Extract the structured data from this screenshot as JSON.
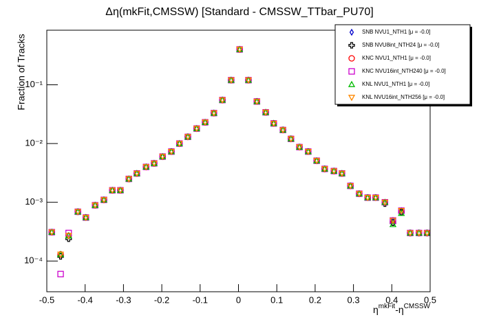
{
  "chart_data": {
    "type": "scatter",
    "title": "Δη(mkFit,CMSSW) [Standard - CMSSW_TTbar_PU70]",
    "x_label": [
      "η",
      "mkFit",
      "-η",
      "CMSSW"
    ],
    "y_label": "Fraction of Tracks",
    "log_y": true,
    "legend_position": "top-right",
    "xlim": [
      -0.5,
      0.5
    ],
    "ylim": [
      3e-05,
      0.85
    ],
    "xticks": [
      -0.5,
      -0.4,
      -0.3,
      -0.2,
      -0.1,
      0,
      0.1,
      0.2,
      0.3,
      0.4,
      0.5
    ],
    "yticks": [
      {
        "value": 0.0001,
        "label": "10⁻⁴"
      },
      {
        "value": 0.001,
        "label": "10⁻³"
      },
      {
        "value": 0.01,
        "label": "10⁻²"
      },
      {
        "value": 0.1,
        "label": "10⁻¹"
      }
    ],
    "x": [
      -0.487,
      -0.464,
      -0.443,
      -0.419,
      -0.398,
      -0.374,
      -0.351,
      -0.329,
      -0.308,
      -0.286,
      -0.265,
      -0.241,
      -0.22,
      -0.198,
      -0.175,
      -0.154,
      -0.132,
      -0.109,
      -0.087,
      -0.064,
      -0.042,
      -0.019,
      0.003,
      0.026,
      0.048,
      0.071,
      0.092,
      0.116,
      0.137,
      0.159,
      0.182,
      0.204,
      0.225,
      0.249,
      0.27,
      0.292,
      0.315,
      0.337,
      0.358,
      0.382,
      0.403,
      0.425,
      0.448,
      0.471,
      0.492
    ],
    "series": [
      {
        "name": "SNB NVU1_NTH1 [μ = -0.0]",
        "color": "#0000cc",
        "marker": "diamond",
        "values": [
          0.00031,
          0.00013,
          0.00027,
          0.00069,
          0.00055,
          0.00089,
          0.0011,
          0.0016,
          0.0016,
          0.0025,
          0.0031,
          0.004,
          0.0046,
          0.006,
          0.0073,
          0.01,
          0.013,
          0.018,
          0.023,
          0.033,
          0.055,
          0.12,
          0.4,
          0.12,
          0.052,
          0.034,
          0.022,
          0.017,
          0.012,
          0.0087,
          0.0073,
          0.0051,
          0.0037,
          0.0034,
          0.0031,
          0.0019,
          0.0014,
          0.0012,
          0.0012,
          0.001,
          0.00049,
          0.00072,
          0.0003,
          0.0003,
          0.0003
        ]
      },
      {
        "name": "SNB NVU8int_NTH24 [μ = -0.0]",
        "color": "#000000",
        "marker": "cross",
        "values": [
          0.00031,
          0.00012,
          0.00024,
          0.00069,
          0.00055,
          0.00089,
          0.0011,
          0.0016,
          0.0016,
          0.0025,
          0.0031,
          0.004,
          0.0046,
          0.006,
          0.0073,
          0.01,
          0.013,
          0.018,
          0.023,
          0.033,
          0.055,
          0.12,
          0.4,
          0.12,
          0.052,
          0.034,
          0.022,
          0.017,
          0.012,
          0.0087,
          0.0073,
          0.0051,
          0.0037,
          0.0034,
          0.0031,
          0.0019,
          0.0014,
          0.0012,
          0.0012,
          0.00095,
          0.00045,
          0.00068,
          0.0003,
          0.0003,
          0.0003
        ]
      },
      {
        "name": "KNC NVU1_NTH1 [μ = -0.0]",
        "color": "#ff0000",
        "marker": "circle",
        "values": [
          0.00031,
          0.00013,
          0.00027,
          0.00069,
          0.00055,
          0.00089,
          0.0011,
          0.0016,
          0.0016,
          0.0025,
          0.0031,
          0.004,
          0.0046,
          0.006,
          0.0073,
          0.01,
          0.013,
          0.018,
          0.023,
          0.033,
          0.055,
          0.12,
          0.4,
          0.12,
          0.052,
          0.034,
          0.022,
          0.017,
          0.012,
          0.0087,
          0.0073,
          0.0051,
          0.0037,
          0.0034,
          0.0031,
          0.0019,
          0.0014,
          0.0012,
          0.0012,
          0.001,
          0.00049,
          0.00072,
          0.0003,
          0.0003,
          0.0003
        ]
      },
      {
        "name": "KNC NVU16int_NTH240 [μ = -0.0]",
        "color": "#cc00cc",
        "marker": "square",
        "values": [
          0.00031,
          6e-05,
          0.0003,
          0.00069,
          0.00055,
          0.00089,
          0.0011,
          0.0016,
          0.0016,
          0.0025,
          0.0031,
          0.004,
          0.0046,
          0.006,
          0.0073,
          0.01,
          0.013,
          0.018,
          0.023,
          0.033,
          0.055,
          0.12,
          0.4,
          0.12,
          0.052,
          0.034,
          0.022,
          0.017,
          0.012,
          0.0087,
          0.0073,
          0.0051,
          0.0037,
          0.0034,
          0.0031,
          0.0019,
          0.0014,
          0.0012,
          0.0012,
          0.001,
          0.00049,
          0.00072,
          0.0003,
          0.0003,
          0.0003
        ]
      },
      {
        "name": "KNL NVU1_NTH1 [μ = -0.0]",
        "color": "#00bb00",
        "marker": "triangle-up",
        "values": [
          0.00031,
          0.00013,
          0.00027,
          0.00069,
          0.00055,
          0.00089,
          0.0011,
          0.0016,
          0.0016,
          0.0025,
          0.0031,
          0.004,
          0.0046,
          0.006,
          0.0073,
          0.01,
          0.013,
          0.018,
          0.023,
          0.033,
          0.055,
          0.12,
          0.4,
          0.12,
          0.052,
          0.034,
          0.022,
          0.017,
          0.012,
          0.0087,
          0.0073,
          0.0051,
          0.0037,
          0.0034,
          0.0031,
          0.0019,
          0.0014,
          0.0012,
          0.0012,
          0.001,
          0.00042,
          0.00065,
          0.0003,
          0.0003,
          0.0003
        ]
      },
      {
        "name": "KNL NVU16int_NTH256 [μ = -0.0]",
        "color": "#ff8800",
        "marker": "triangle-down",
        "values": [
          0.00031,
          0.00013,
          0.00027,
          0.00069,
          0.00055,
          0.00089,
          0.0011,
          0.0016,
          0.0016,
          0.0025,
          0.0031,
          0.004,
          0.0046,
          0.006,
          0.0073,
          0.01,
          0.013,
          0.018,
          0.023,
          0.033,
          0.055,
          0.12,
          0.4,
          0.12,
          0.052,
          0.034,
          0.022,
          0.017,
          0.012,
          0.0087,
          0.0073,
          0.0051,
          0.0037,
          0.0034,
          0.0031,
          0.0019,
          0.0014,
          0.0012,
          0.0012,
          0.001,
          0.00049,
          0.00072,
          0.0003,
          0.0003,
          0.0003
        ]
      }
    ]
  }
}
